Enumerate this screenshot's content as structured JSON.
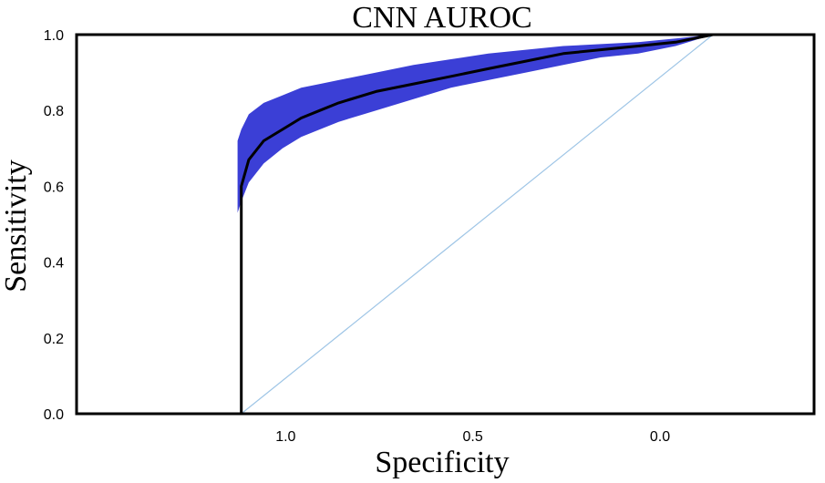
{
  "chart_data": {
    "type": "line",
    "title": "CNN AUROC",
    "xlabel": "Specificity",
    "ylabel": "Sensitivity",
    "xlim": [
      1.5,
      -0.47
    ],
    "ylim": [
      0.0,
      1.0
    ],
    "x_ticks": [
      "1.0",
      "0.5",
      "0.0"
    ],
    "x_tick_values": [
      1.0,
      0.5,
      0.0
    ],
    "y_ticks": [
      "0.0",
      "0.2",
      "0.4",
      "0.6",
      "0.8",
      "1.0"
    ],
    "y_tick_values": [
      0.0,
      0.2,
      0.4,
      0.6,
      0.8,
      1.0
    ],
    "grid": false,
    "legend": "none",
    "colors": {
      "roc_curve": "#000000",
      "confidence_band": "#3b3fd6",
      "diagonal": "#9ec5e6",
      "frame": "#000000"
    },
    "series": [
      {
        "x": [
          1.06,
          1.06,
          1.06,
          1.04,
          1.0,
          0.95,
          0.9,
          0.85,
          0.8,
          0.7,
          0.6,
          0.5,
          0.4,
          0.3,
          0.2,
          0.1,
          0.0,
          -0.05,
          -0.1,
          -0.15,
          -0.2
        ],
        "y": [
          0.0,
          0.55,
          0.6,
          0.67,
          0.72,
          0.75,
          0.78,
          0.8,
          0.82,
          0.85,
          0.87,
          0.89,
          0.91,
          0.93,
          0.95,
          0.96,
          0.97,
          0.975,
          0.98,
          0.99,
          1.0
        ]
      },
      {
        "type": "area",
        "x": [
          1.07,
          1.06,
          1.04,
          1.0,
          0.95,
          0.9,
          0.85,
          0.8,
          0.7,
          0.6,
          0.5,
          0.4,
          0.3,
          0.2,
          0.1,
          0.0,
          -0.05,
          -0.1,
          -0.15,
          -0.2
        ],
        "y_low": [
          0.53,
          0.56,
          0.61,
          0.66,
          0.7,
          0.73,
          0.75,
          0.77,
          0.8,
          0.83,
          0.86,
          0.88,
          0.9,
          0.92,
          0.94,
          0.95,
          0.96,
          0.97,
          0.985,
          1.0
        ],
        "y_high": [
          0.72,
          0.75,
          0.79,
          0.82,
          0.84,
          0.86,
          0.87,
          0.88,
          0.9,
          0.92,
          0.935,
          0.95,
          0.96,
          0.97,
          0.975,
          0.98,
          0.985,
          0.99,
          0.995,
          1.0
        ]
      },
      {
        "x": [
          1.06,
          -0.2
        ],
        "y": [
          0.0,
          1.0
        ]
      }
    ]
  }
}
